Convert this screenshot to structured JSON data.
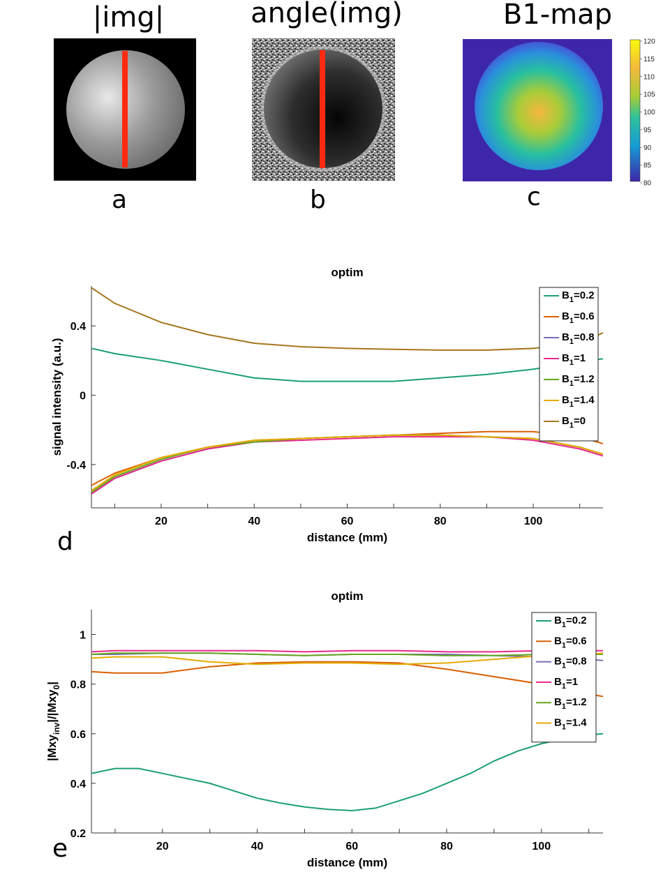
{
  "images": {
    "a": {
      "title": "|img|",
      "letter": "a"
    },
    "b": {
      "title": "angle(img)",
      "letter": "b"
    },
    "c": {
      "title": "B1-map",
      "letter": "c",
      "colorbar": {
        "ticks": [
          120,
          115,
          110,
          105,
          100,
          95,
          90,
          85,
          80
        ],
        "range": [
          80,
          120
        ]
      }
    }
  },
  "chart_data": [
    {
      "type": "line",
      "panel": "d",
      "title": "optim",
      "xlabel": "distance (mm)",
      "ylabel": "signal intensity (a.u.)",
      "xlim": [
        5,
        115
      ],
      "ylim": [
        -0.65,
        0.63
      ],
      "xticks": [
        20,
        40,
        60,
        80,
        100
      ],
      "yticks": [
        0.4,
        0,
        -0.4
      ],
      "ytick_labels": [
        "0.4",
        "0",
        "-0.4"
      ],
      "legend": "top-right",
      "series": [
        {
          "name": "B1=0.2",
          "base": "B",
          "sub": "1",
          "val": "=0.2",
          "color": "#1b9e77",
          "x": [
            5,
            10,
            20,
            30,
            40,
            50,
            60,
            70,
            80,
            90,
            100,
            110,
            115
          ],
          "y": [
            0.27,
            0.24,
            0.2,
            0.15,
            0.1,
            0.08,
            0.08,
            0.08,
            0.1,
            0.12,
            0.15,
            0.19,
            0.21
          ]
        },
        {
          "name": "B1=0.6",
          "base": "B",
          "sub": "1",
          "val": "=0.6",
          "color": "#d95f02",
          "x": [
            5,
            10,
            20,
            30,
            40,
            50,
            60,
            70,
            80,
            90,
            100,
            110,
            115
          ],
          "y": [
            -0.52,
            -0.45,
            -0.36,
            -0.3,
            -0.26,
            -0.25,
            -0.24,
            -0.23,
            -0.22,
            -0.21,
            -0.21,
            -0.24,
            -0.28
          ]
        },
        {
          "name": "B1=0.8",
          "base": "B",
          "sub": "1",
          "val": "=0.8",
          "color": "#7570b3",
          "x": [
            5,
            10,
            20,
            30,
            40,
            50,
            60,
            70,
            80,
            90,
            100,
            110,
            115
          ],
          "y": [
            -0.57,
            -0.48,
            -0.38,
            -0.31,
            -0.27,
            -0.25,
            -0.24,
            -0.23,
            -0.23,
            -0.24,
            -0.25,
            -0.3,
            -0.34
          ]
        },
        {
          "name": "B1=1",
          "base": "B",
          "sub": "1",
          "val": "=1",
          "color": "#e7298a",
          "x": [
            5,
            10,
            20,
            30,
            40,
            50,
            60,
            70,
            80,
            90,
            100,
            110,
            115
          ],
          "y": [
            -0.57,
            -0.48,
            -0.38,
            -0.31,
            -0.27,
            -0.26,
            -0.25,
            -0.24,
            -0.24,
            -0.24,
            -0.26,
            -0.31,
            -0.35
          ]
        },
        {
          "name": "B1=1.2",
          "base": "B",
          "sub": "1",
          "val": "=1.2",
          "color": "#66a61e",
          "x": [
            5,
            10,
            20,
            30,
            40,
            50,
            60,
            70,
            80,
            90,
            100,
            110,
            115
          ],
          "y": [
            -0.56,
            -0.47,
            -0.37,
            -0.3,
            -0.27,
            -0.25,
            -0.24,
            -0.23,
            -0.23,
            -0.24,
            -0.25,
            -0.3,
            -0.34
          ]
        },
        {
          "name": "B1=1.4",
          "base": "B",
          "sub": "1",
          "val": "=1.4",
          "color": "#e6ab02",
          "x": [
            5,
            10,
            20,
            30,
            40,
            50,
            60,
            70,
            80,
            90,
            100,
            110,
            115
          ],
          "y": [
            -0.55,
            -0.46,
            -0.36,
            -0.3,
            -0.26,
            -0.25,
            -0.24,
            -0.23,
            -0.23,
            -0.24,
            -0.25,
            -0.3,
            -0.34
          ]
        },
        {
          "name": "B1=0",
          "base": "B",
          "sub": "1",
          "val": "=0",
          "color": "#a6761d",
          "x": [
            5,
            10,
            20,
            30,
            40,
            50,
            60,
            70,
            80,
            90,
            100,
            110,
            115
          ],
          "y": [
            0.62,
            0.53,
            0.42,
            0.35,
            0.3,
            0.28,
            0.27,
            0.265,
            0.26,
            0.26,
            0.27,
            0.3,
            0.36
          ]
        }
      ]
    },
    {
      "type": "line",
      "panel": "e",
      "title": "optim",
      "xlabel": "distance (mm)",
      "ylabel": "|Mxy_inv|/|Mxy_0|",
      "ylabel_parts": [
        "|Mxy",
        "inv",
        "|/|Mxy",
        "0",
        "|"
      ],
      "xlim": [
        5,
        113
      ],
      "ylim": [
        0.2,
        1.1
      ],
      "xticks": [
        20,
        40,
        60,
        80,
        100
      ],
      "yticks": [
        1,
        0.8,
        0.6,
        0.4,
        0.2
      ],
      "ytick_labels": [
        "1",
        "0.8",
        "0.6",
        "0.4",
        "0.2"
      ],
      "legend": "top-right",
      "series": [
        {
          "name": "B1=0.2",
          "base": "B",
          "sub": "1",
          "val": "=0.2",
          "color": "#1b9e77",
          "x": [
            5,
            10,
            15,
            20,
            25,
            30,
            35,
            40,
            45,
            50,
            55,
            60,
            65,
            70,
            75,
            80,
            85,
            90,
            95,
            100,
            105,
            110,
            113
          ],
          "y": [
            0.44,
            0.46,
            0.46,
            0.44,
            0.42,
            0.4,
            0.37,
            0.34,
            0.32,
            0.305,
            0.295,
            0.29,
            0.3,
            0.33,
            0.36,
            0.4,
            0.44,
            0.49,
            0.53,
            0.56,
            0.58,
            0.595,
            0.6
          ]
        },
        {
          "name": "B1=0.6",
          "base": "B",
          "sub": "1",
          "val": "=0.6",
          "color": "#d95f02",
          "x": [
            5,
            10,
            20,
            30,
            40,
            50,
            60,
            70,
            80,
            90,
            100,
            105,
            110,
            113
          ],
          "y": [
            0.85,
            0.845,
            0.845,
            0.87,
            0.885,
            0.89,
            0.89,
            0.885,
            0.86,
            0.83,
            0.8,
            0.78,
            0.76,
            0.75
          ]
        },
        {
          "name": "B1=0.8",
          "base": "B",
          "sub": "1",
          "val": "=0.8",
          "color": "#7570b3",
          "x": [
            5,
            10,
            20,
            30,
            40,
            50,
            60,
            70,
            80,
            90,
            100,
            110,
            113
          ],
          "y": [
            0.92,
            0.92,
            0.925,
            0.925,
            0.92,
            0.915,
            0.92,
            0.92,
            0.92,
            0.915,
            0.91,
            0.9,
            0.895
          ]
        },
        {
          "name": "B1=1",
          "base": "B",
          "sub": "1",
          "val": "=1",
          "color": "#e7298a",
          "x": [
            5,
            10,
            20,
            30,
            40,
            50,
            60,
            70,
            80,
            90,
            100,
            110,
            113
          ],
          "y": [
            0.93,
            0.935,
            0.935,
            0.935,
            0.935,
            0.93,
            0.935,
            0.935,
            0.93,
            0.93,
            0.935,
            0.935,
            0.935
          ]
        },
        {
          "name": "B1=1.2",
          "base": "B",
          "sub": "1",
          "val": "=1.2",
          "color": "#66a61e",
          "x": [
            5,
            10,
            20,
            30,
            40,
            50,
            60,
            70,
            80,
            90,
            100,
            110,
            113
          ],
          "y": [
            0.92,
            0.925,
            0.925,
            0.925,
            0.92,
            0.915,
            0.92,
            0.92,
            0.915,
            0.915,
            0.92,
            0.92,
            0.92
          ]
        },
        {
          "name": "B1=1.4",
          "base": "B",
          "sub": "1",
          "val": "=1.4",
          "color": "#e6ab02",
          "x": [
            5,
            10,
            20,
            30,
            40,
            50,
            60,
            70,
            80,
            90,
            100,
            110,
            113
          ],
          "y": [
            0.905,
            0.91,
            0.91,
            0.89,
            0.88,
            0.885,
            0.885,
            0.88,
            0.885,
            0.9,
            0.915,
            0.92,
            0.925
          ]
        }
      ]
    }
  ],
  "letters": {
    "d": "d",
    "e": "e"
  }
}
